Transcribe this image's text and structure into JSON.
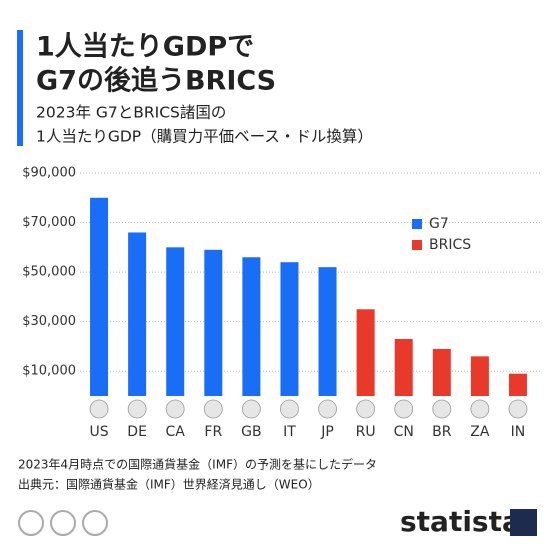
{
  "chart_data": {
    "type": "bar",
    "title": [
      "1人当たりGDPで",
      "G7の後追うBRICS"
    ],
    "subtitle": [
      "2023年 G7とBRICS諸国の",
      "1人当たりGDP（購買力平価ベース・ドル換算）"
    ],
    "categories": [
      "US",
      "DE",
      "CA",
      "FR",
      "GB",
      "IT",
      "JP",
      "RU",
      "CN",
      "BR",
      "ZA",
      "IN"
    ],
    "series": [
      {
        "name": "G7",
        "color": "#1a6ef5",
        "values": [
          80000,
          66000,
          60000,
          59000,
          56000,
          54000,
          52000,
          null,
          null,
          null,
          null,
          null
        ]
      },
      {
        "name": "BRICS",
        "color": "#e8392a",
        "values": [
          null,
          null,
          null,
          null,
          null,
          null,
          null,
          35000,
          23000,
          19000,
          16000,
          9000
        ]
      }
    ],
    "ylim": [
      0,
      90000
    ],
    "yticks": [
      {
        "value": 10000,
        "label": "$10,000"
      },
      {
        "value": 30000,
        "label": "$30,000"
      },
      {
        "value": 50000,
        "label": "$50,000"
      },
      {
        "value": 70000,
        "label": "$70,000"
      },
      {
        "value": 90000,
        "label": "$90,000"
      }
    ],
    "grid": true,
    "legend": "top-right",
    "notes": [
      "2023年4月時点での国際通貨基金（IMF）の予測を基にしたデータ",
      "出典元：国際通貨基金（IMF）世界経済見通し（WEO）"
    ],
    "brand": "statista"
  }
}
